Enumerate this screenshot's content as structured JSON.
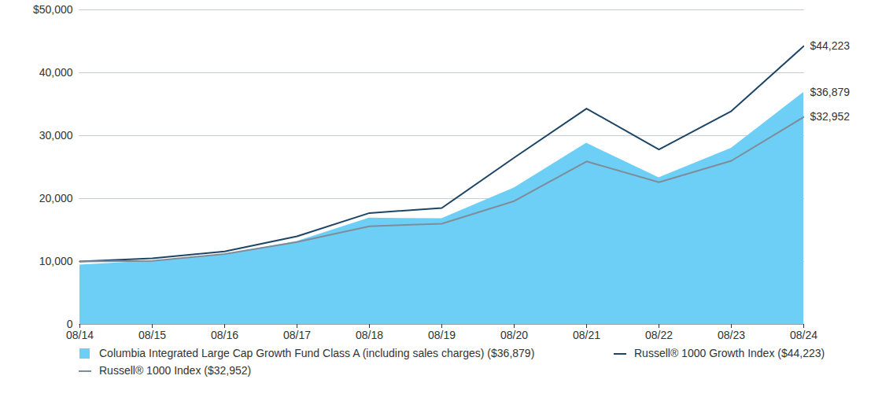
{
  "chart_data": {
    "type": "line",
    "categories": [
      "08/14",
      "08/15",
      "08/16",
      "08/17",
      "08/18",
      "08/19",
      "08/20",
      "08/21",
      "08/22",
      "08/23",
      "08/24"
    ],
    "ylim": [
      0,
      50000
    ],
    "yticks": [
      0,
      {
        "value": 10000,
        "label": "10,000"
      },
      {
        "value": 20000,
        "label": "20,000"
      },
      {
        "value": 30000,
        "label": "30,000"
      },
      {
        "value": 40000,
        "label": "40,000"
      },
      {
        "value": 50000,
        "label": "$50,000"
      }
    ],
    "grid": true,
    "series": [
      {
        "name": "Columbia Integrated Large Cap Growth Fund Class A (including sales charges) ($36,879)",
        "type": "area",
        "color": "#6dcff6",
        "values": [
          9450,
          10100,
          11100,
          13200,
          16900,
          16800,
          21700,
          28800,
          23300,
          28000,
          36879
        ],
        "value_labels": [
          null,
          null,
          null,
          null,
          null,
          null,
          null,
          null,
          null,
          null,
          "$36,879"
        ]
      },
      {
        "name": "Russell® 1000 Growth Index ($44,223)",
        "type": "line",
        "color": "#1d4566",
        "values": [
          10000,
          10500,
          11600,
          14000,
          17700,
          18500,
          26500,
          34300,
          27800,
          33900,
          44223
        ],
        "value_labels": [
          null,
          null,
          null,
          null,
          null,
          null,
          null,
          null,
          null,
          null,
          "$44,223"
        ]
      },
      {
        "name": "Russell® 1000 Index ($32,952)",
        "type": "line",
        "color": "#7f8c99",
        "values": [
          10000,
          10100,
          11200,
          13100,
          15600,
          16000,
          19600,
          25900,
          22600,
          26000,
          32952
        ],
        "value_labels": [
          null,
          null,
          null,
          null,
          null,
          null,
          null,
          null,
          null,
          null,
          "$32,952"
        ]
      }
    ]
  }
}
